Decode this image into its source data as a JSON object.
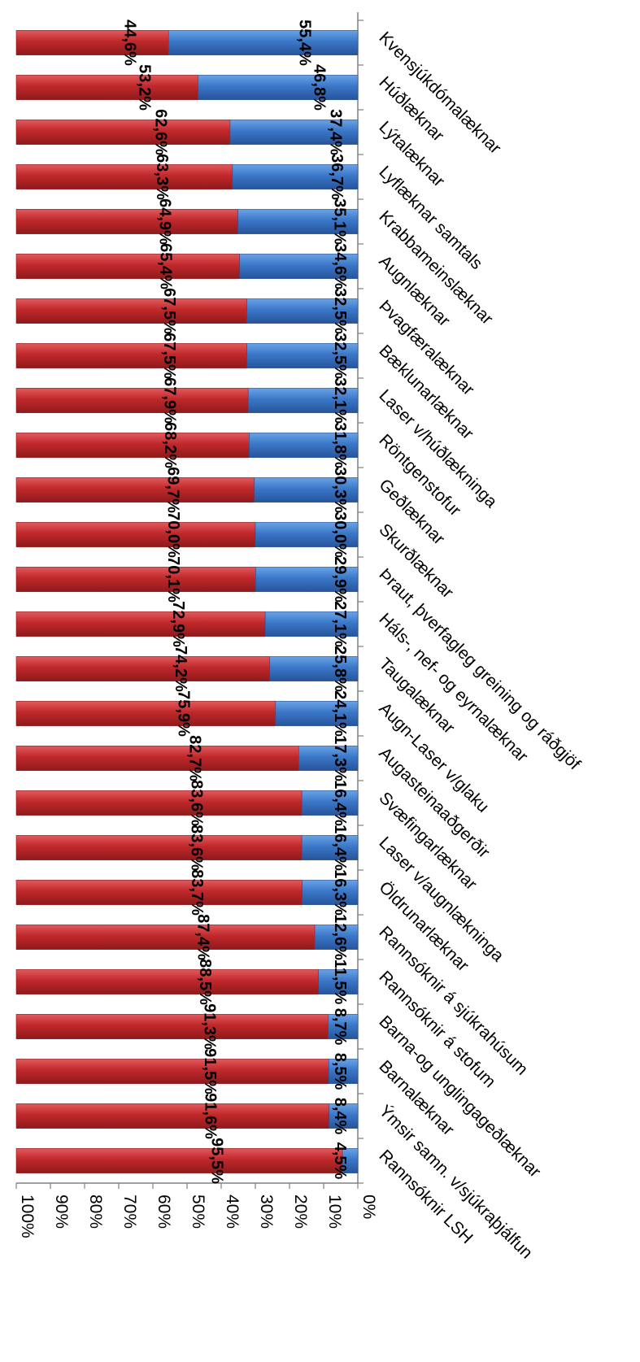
{
  "chart_data": {
    "type": "bar",
    "stacked": true,
    "percent_stacked": true,
    "rotated": "180deg",
    "orientation": "horizontal bars, value axis along bottom after rotation",
    "title": "",
    "xlabel": "",
    "ylabel": "",
    "ylim": [
      0,
      100
    ],
    "value_ticks": [
      "0%",
      "10%",
      "20%",
      "30%",
      "40%",
      "50%",
      "60%",
      "70%",
      "80%",
      "90%",
      "100%"
    ],
    "grid": false,
    "legend": "none",
    "colors": {
      "series_1": "#c0282b",
      "series_2": "#3b77c8"
    },
    "categories": [
      "Kvensjúkdómalæknar",
      "Húðlæknar",
      "Lýtalæknar",
      "Lyflæknar samtals",
      "Krabbameinslæknar",
      "Augnlæknar",
      "Þvagfæralæknar",
      "Bæklunarlæknar",
      "Laser v/húðlækninga",
      "Röntgenstofur",
      "Geðlæknar",
      "Skurðlæknar",
      "Þraut, þverfagleg greining og ráðgjöf",
      "Háls-, nef- og eyrnalæknar",
      "Taugalæknar",
      "Augn-Laser v/glaku",
      "Augasteinaaðgerðir",
      "Svæfingarlæknar",
      "Laser v/augnlækninga",
      "Öldrunarlæknar",
      "Rannsóknir á sjúkrahúsum",
      "Rannsóknir á stofum",
      "Barna-og unglingageðlæknar",
      "Barnalæknar",
      "Ýmsir samn. v/sjúkraþjálfun",
      "Rannsóknir LSH"
    ],
    "series": [
      {
        "values": [
          44.6,
          53.2,
          62.6,
          63.3,
          64.9,
          65.4,
          67.5,
          67.5,
          67.9,
          68.2,
          69.7,
          70.0,
          70.1,
          72.9,
          74.2,
          75.9,
          82.7,
          83.6,
          83.6,
          83.7,
          87.4,
          88.5,
          91.3,
          91.5,
          91.6,
          95.5
        ],
        "labels": [
          "44,6%",
          "53,2%",
          "62,6%",
          "63,3%",
          "64,9%",
          "65,4%",
          "67,5%",
          "67,5%",
          "67,9%",
          "68,2%",
          "69,7%",
          "70,0%",
          "70,1%",
          "72,9%",
          "74,2%",
          "75,9%",
          "82,7%",
          "83,6%",
          "83,6%",
          "83,7%",
          "87,4%",
          "88,5%",
          "91,3%",
          "91,5%",
          "91,6%",
          "95,5%"
        ]
      },
      {
        "values": [
          55.4,
          46.8,
          37.4,
          36.7,
          35.1,
          34.6,
          32.5,
          32.5,
          32.1,
          31.8,
          30.3,
          30.0,
          29.9,
          27.1,
          25.8,
          24.1,
          17.3,
          16.4,
          16.4,
          16.3,
          12.6,
          11.5,
          8.7,
          8.5,
          8.4,
          4.5
        ],
        "labels": [
          "55,4%",
          "46,8%",
          "37,4%",
          "36,7%",
          "35,1%",
          "34,6%",
          "32,5%",
          "32,5%",
          "32,1%",
          "31,8%",
          "30,3%",
          "30,0%",
          "29,9%",
          "27,1%",
          "25,8%",
          "24,1%",
          "17,3%",
          "16,4%",
          "16,4%",
          "16,3%",
          "12,6%",
          "11,5%",
          "8,7%",
          "8,5%",
          "8,4%",
          "4,5%"
        ]
      }
    ]
  }
}
